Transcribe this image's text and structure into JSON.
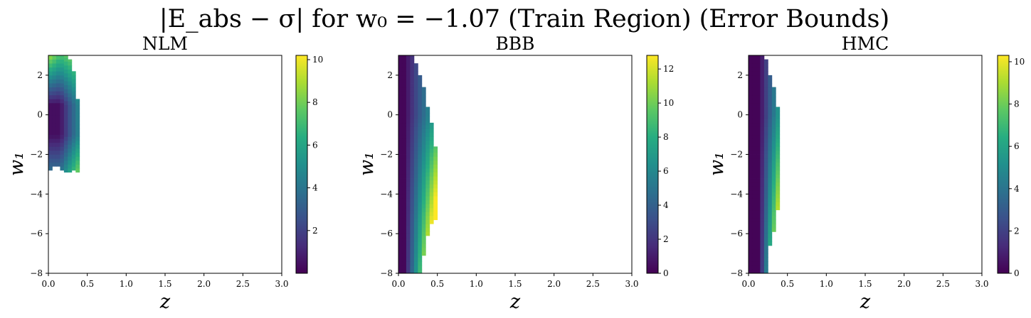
{
  "figure": {
    "suptitle": "|E_abs − σ| for w₀ = −1.07 (Train Region) (Error Bounds)"
  },
  "chart_data": [
    {
      "type": "heatmap",
      "title": "NLM",
      "xlabel": "z",
      "ylabel": "w₁",
      "xlim": [
        0,
        3
      ],
      "ylim": [
        -8,
        3
      ],
      "xticks": [
        "0.0",
        "0.5",
        "1.0",
        "1.5",
        "2.0",
        "2.5",
        "3.0"
      ],
      "yticks": [
        "−8",
        "−6",
        "−4",
        "−2",
        "0",
        "2"
      ],
      "grid": false,
      "colormap": "viridis",
      "colorbar": {
        "min": 0,
        "max": 10.2,
        "ticks": [
          "2",
          "4",
          "6",
          "8",
          "10"
        ],
        "tick_values": [
          2,
          4,
          6,
          8,
          10
        ]
      },
      "grid_resolution": {
        "dz": 0.05,
        "dw": 0.2
      },
      "columns": [
        {
          "z": 0.025,
          "w_min": -2.8,
          "w_max": 3.0
        },
        {
          "z": 0.075,
          "w_min": -2.6,
          "w_max": 3.0
        },
        {
          "z": 0.125,
          "w_min": -2.6,
          "w_max": 3.0
        },
        {
          "z": 0.175,
          "w_min": -2.8,
          "w_max": 3.0
        },
        {
          "z": 0.225,
          "w_min": -2.9,
          "w_max": 3.0
        },
        {
          "z": 0.275,
          "w_min": -2.9,
          "w_max": 2.8
        },
        {
          "z": 0.325,
          "w_min": -2.8,
          "w_max": 2.2
        },
        {
          "z": 0.375,
          "w_min": -2.9,
          "w_max": 0.8
        }
      ],
      "value_description": "values near 10 at small z and large w1 (top-left), near 0.5 around w1 in [-1, 0], rising to about 5-7 at the right/bottom edge of the shape"
    },
    {
      "type": "heatmap",
      "title": "BBB",
      "xlabel": "z",
      "ylabel": "w₁",
      "xlim": [
        0,
        3
      ],
      "ylim": [
        -8,
        3
      ],
      "xticks": [
        "0.0",
        "0.5",
        "1.0",
        "1.5",
        "2.0",
        "2.5",
        "3.0"
      ],
      "yticks": [
        "−8",
        "−6",
        "−4",
        "−2",
        "0",
        "2"
      ],
      "grid": false,
      "colormap": "viridis",
      "colorbar": {
        "min": 0,
        "max": 12.8,
        "ticks": [
          "0",
          "2",
          "4",
          "6",
          "8",
          "10",
          "12"
        ],
        "tick_values": [
          0,
          2,
          4,
          6,
          8,
          10,
          12
        ]
      },
      "grid_resolution": {
        "dz": 0.05,
        "dw": 0.2
      },
      "columns": [
        {
          "z": 0.025,
          "w_min": -8.0,
          "w_max": 3.0
        },
        {
          "z": 0.075,
          "w_min": -8.0,
          "w_max": 3.0
        },
        {
          "z": 0.125,
          "w_min": -8.0,
          "w_max": 3.0
        },
        {
          "z": 0.175,
          "w_min": -8.0,
          "w_max": 3.0
        },
        {
          "z": 0.225,
          "w_min": -8.0,
          "w_max": 2.6
        },
        {
          "z": 0.275,
          "w_min": -8.0,
          "w_max": 2.0
        },
        {
          "z": 0.325,
          "w_min": -7.1,
          "w_max": 1.4
        },
        {
          "z": 0.375,
          "w_min": -6.1,
          "w_max": 0.4
        },
        {
          "z": 0.425,
          "w_min": -5.5,
          "w_max": -0.4
        },
        {
          "z": 0.475,
          "w_min": -5.3,
          "w_max": -1.6
        }
      ],
      "value_description": "values near 0 for small z, increasing with z and with decreasing w1, reaching about 12 at the lower-right edge around w1 = -4.5"
    },
    {
      "type": "heatmap",
      "title": "HMC",
      "xlabel": "z",
      "ylabel": "w₁",
      "xlim": [
        0,
        3
      ],
      "ylim": [
        -8,
        3
      ],
      "xticks": [
        "0.0",
        "0.5",
        "1.0",
        "1.5",
        "2.0",
        "2.5",
        "3.0"
      ],
      "yticks": [
        "−8",
        "−6",
        "−4",
        "−2",
        "0",
        "2"
      ],
      "grid": false,
      "colormap": "viridis",
      "colorbar": {
        "min": 0,
        "max": 10.3,
        "ticks": [
          "0",
          "2",
          "4",
          "6",
          "8",
          "10"
        ],
        "tick_values": [
          0,
          2,
          4,
          6,
          8,
          10
        ]
      },
      "grid_resolution": {
        "dz": 0.05,
        "dw": 0.2
      },
      "columns": [
        {
          "z": 0.025,
          "w_min": -8.0,
          "w_max": 3.0
        },
        {
          "z": 0.075,
          "w_min": -8.0,
          "w_max": 3.0
        },
        {
          "z": 0.125,
          "w_min": -8.0,
          "w_max": 3.0
        },
        {
          "z": 0.175,
          "w_min": -8.0,
          "w_max": 3.0
        },
        {
          "z": 0.225,
          "w_min": -8.0,
          "w_max": 2.8
        },
        {
          "z": 0.275,
          "w_min": -6.6,
          "w_max": 2.0
        },
        {
          "z": 0.325,
          "w_min": -5.9,
          "w_max": 1.4
        },
        {
          "z": 0.375,
          "w_min": -4.8,
          "w_max": 0.4
        }
      ],
      "value_description": "values near 0 for most of the region, rising to about 8-10 at the lower-right edge around w1 = -5"
    }
  ]
}
